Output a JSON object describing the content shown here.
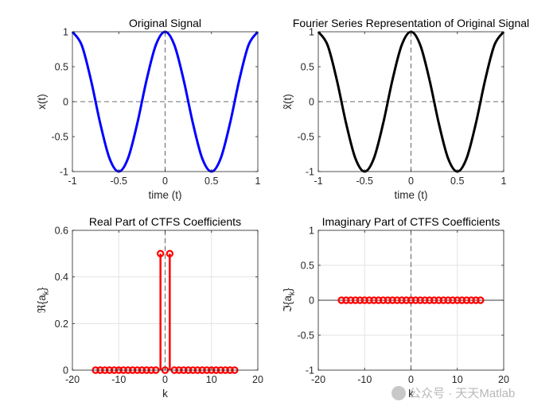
{
  "chart_data": [
    {
      "type": "line",
      "title": "Original Signal",
      "xlabel": "time (t)",
      "ylabel": "x(t)",
      "xlim": [
        -1,
        1
      ],
      "ylim": [
        -1,
        1
      ],
      "xticks": [
        -1,
        -0.5,
        0,
        0.5,
        1
      ],
      "xticklabels": [
        "-1",
        "-0.5",
        "0",
        "0.5",
        "1"
      ],
      "yticks": [
        -1,
        -0.5,
        0,
        0.5,
        1
      ],
      "yticklabels": [
        "-1",
        "-0.5",
        "0",
        "0.5",
        "1"
      ],
      "grid": false,
      "series": [
        {
          "color": "#0000ff",
          "x": [
            -1,
            -0.9,
            -0.8,
            -0.7,
            -0.6,
            -0.5,
            -0.4,
            -0.3,
            -0.2,
            -0.1,
            0,
            0.1,
            0.2,
            0.3,
            0.4,
            0.5,
            0.6,
            0.7,
            0.8,
            0.9,
            1
          ],
          "y": [
            1,
            0.81,
            0.31,
            -0.31,
            -0.81,
            -1,
            -0.81,
            -0.31,
            0.31,
            0.81,
            1,
            0.81,
            0.31,
            -0.31,
            -0.81,
            -1,
            -0.81,
            -0.31,
            0.31,
            0.81,
            1
          ]
        }
      ]
    },
    {
      "type": "line",
      "title": "Fourier Series Representation of Original Signal",
      "xlabel": "time (t)",
      "ylabel": "x̃(t)",
      "xlim": [
        -1,
        1
      ],
      "ylim": [
        -1,
        1
      ],
      "xticks": [
        -1,
        -0.5,
        0,
        0.5,
        1
      ],
      "xticklabels": [
        "-1",
        "-0.5",
        "0",
        "0.5",
        "1"
      ],
      "yticks": [
        -1,
        -0.5,
        0,
        0.5,
        1
      ],
      "yticklabels": [
        "-1",
        "-0.5",
        "0",
        "0.5",
        "1"
      ],
      "grid": false,
      "series": [
        {
          "color": "#000000",
          "x": [
            -1,
            -0.9,
            -0.8,
            -0.7,
            -0.6,
            -0.5,
            -0.4,
            -0.3,
            -0.2,
            -0.1,
            0,
            0.1,
            0.2,
            0.3,
            0.4,
            0.5,
            0.6,
            0.7,
            0.8,
            0.9,
            1
          ],
          "y": [
            1,
            0.81,
            0.31,
            -0.31,
            -0.81,
            -1,
            -0.81,
            -0.31,
            0.31,
            0.81,
            1,
            0.81,
            0.31,
            -0.31,
            -0.81,
            -1,
            -0.81,
            -0.31,
            0.31,
            0.81,
            1
          ]
        }
      ]
    },
    {
      "type": "stem",
      "title": "Real Part of CTFS Coefficients",
      "xlabel": "k",
      "ylabel": "ℜ{a",
      "ylabel_sub": "k",
      "ylabel_end": "}",
      "xlim": [
        -20,
        20
      ],
      "ylim": [
        0,
        0.6
      ],
      "xticks": [
        -20,
        -10,
        0,
        10,
        20
      ],
      "xticklabels": [
        "-20",
        "-10",
        "0",
        "10",
        "20"
      ],
      "yticks": [
        0,
        0.2,
        0.4,
        0.6
      ],
      "yticklabels": [
        "0",
        "0.2",
        "0.4",
        "0.6"
      ],
      "grid": true,
      "color": "#ff0000",
      "k": [
        -15,
        -14,
        -13,
        -12,
        -11,
        -10,
        -9,
        -8,
        -7,
        -6,
        -5,
        -4,
        -3,
        -2,
        -1,
        0,
        1,
        2,
        3,
        4,
        5,
        6,
        7,
        8,
        9,
        10,
        11,
        12,
        13,
        14,
        15
      ],
      "values": [
        0,
        0,
        0,
        0,
        0,
        0,
        0,
        0,
        0,
        0,
        0,
        0,
        0,
        0,
        0.5,
        0,
        0.5,
        0,
        0,
        0,
        0,
        0,
        0,
        0,
        0,
        0,
        0,
        0,
        0,
        0,
        0
      ]
    },
    {
      "type": "stem",
      "title": "Imaginary Part of CTFS Coefficients",
      "xlabel": "k",
      "ylabel": "ℑ{a",
      "ylabel_sub": "k",
      "ylabel_end": "}",
      "xlim": [
        -20,
        20
      ],
      "ylim": [
        -1,
        1
      ],
      "xticks": [
        -20,
        -10,
        0,
        10,
        20
      ],
      "xticklabels": [
        "-20",
        "-10",
        "0",
        "10",
        "20"
      ],
      "yticks": [
        -1,
        -0.5,
        0,
        0.5,
        1
      ],
      "yticklabels": [
        "-1",
        "-0.5",
        "0",
        "0.5",
        "1"
      ],
      "grid": true,
      "color": "#ff0000",
      "k": [
        -15,
        -14,
        -13,
        -12,
        -11,
        -10,
        -9,
        -8,
        -7,
        -6,
        -5,
        -4,
        -3,
        -2,
        -1,
        0,
        1,
        2,
        3,
        4,
        5,
        6,
        7,
        8,
        9,
        10,
        11,
        12,
        13,
        14,
        15
      ],
      "values": [
        0,
        0,
        0,
        0,
        0,
        0,
        0,
        0,
        0,
        0,
        0,
        0,
        0,
        0,
        0,
        0,
        0,
        0,
        0,
        0,
        0,
        0,
        0,
        0,
        0,
        0,
        0,
        0,
        0,
        0,
        0
      ]
    }
  ],
  "watermark": {
    "text": "公众号 · 天天Matlab",
    "icon": "wechat-icon"
  }
}
